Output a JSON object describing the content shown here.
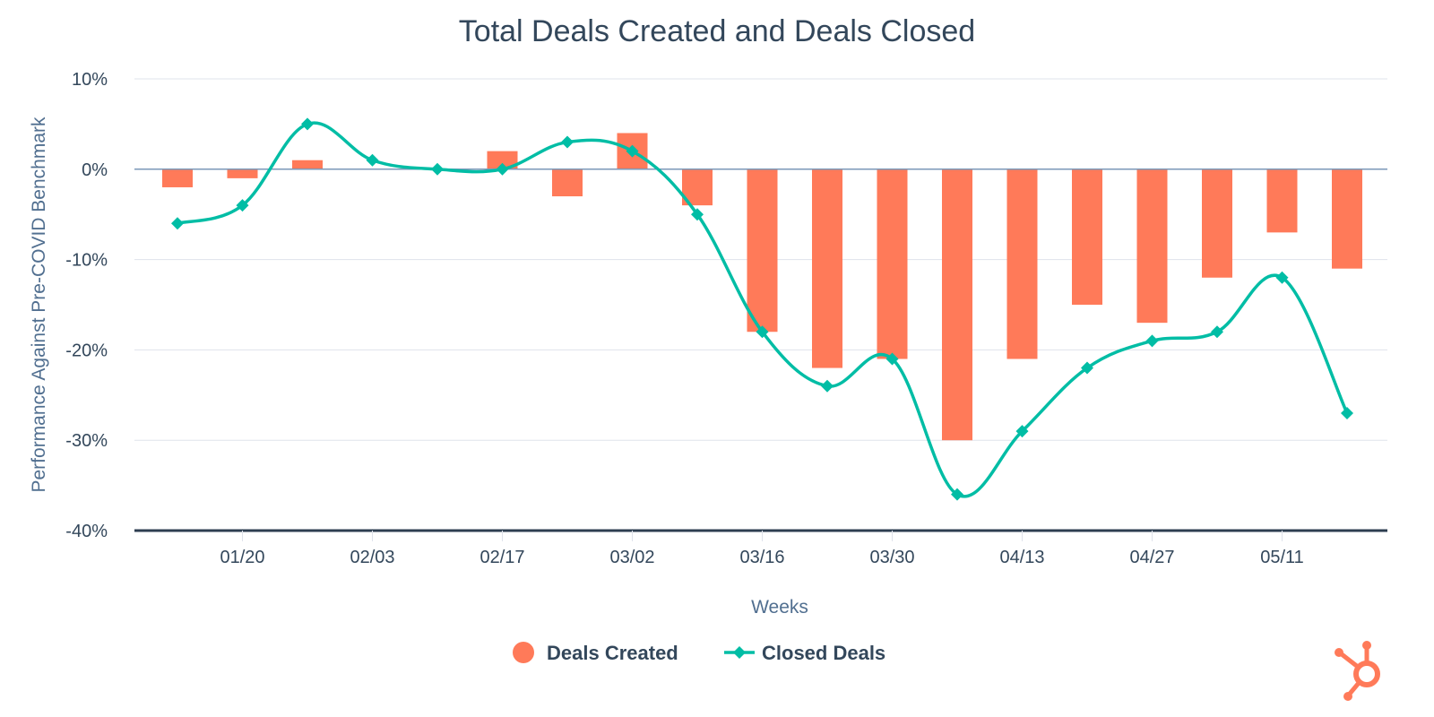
{
  "chart_data": {
    "type": "bar+line",
    "title": "Total Deals Created and Deals Closed",
    "xlabel": "Weeks",
    "ylabel": "Performance Against Pre-COVID Benchmark",
    "ylim": [
      -40,
      10
    ],
    "yticks": [
      10,
      0,
      -10,
      -20,
      -30,
      -40
    ],
    "ytick_labels": [
      "10%",
      "0%",
      "-10%",
      "-20%",
      "-30%",
      "-40%"
    ],
    "xtick_labels": [
      {
        "index": 1,
        "label": "01/20"
      },
      {
        "index": 3,
        "label": "02/03"
      },
      {
        "index": 5,
        "label": "02/17"
      },
      {
        "index": 7,
        "label": "03/02"
      },
      {
        "index": 9,
        "label": "03/16"
      },
      {
        "index": 11,
        "label": "03/30"
      },
      {
        "index": 13,
        "label": "04/13"
      },
      {
        "index": 15,
        "label": "04/27"
      },
      {
        "index": 17,
        "label": "05/11"
      }
    ],
    "grid": true,
    "legend_position": "bottom-center",
    "series": [
      {
        "name": "Deals Created",
        "type": "bar",
        "color": "#ff7a59",
        "values": [
          -2,
          -1,
          1,
          0,
          0,
          2,
          -3,
          4,
          -4,
          -18,
          -22,
          -21,
          -30,
          -21,
          -15,
          -17,
          -12,
          -7,
          -11
        ]
      },
      {
        "name": "Closed Deals",
        "type": "line",
        "color": "#00bda5",
        "values": [
          -6,
          -4,
          5,
          1,
          0,
          0,
          3,
          2,
          -5,
          -18,
          -24,
          -21,
          -36,
          -29,
          -22,
          -19,
          -18,
          -12,
          -27
        ]
      }
    ]
  },
  "colors": {
    "text": "#33475b",
    "grid": "#dfe3eb",
    "zero_line": "#7b98b8",
    "base_axis": "#2d3e50",
    "logo": "#ff7a59"
  },
  "logo": {
    "icon": "hubspot-sprocket-icon"
  }
}
